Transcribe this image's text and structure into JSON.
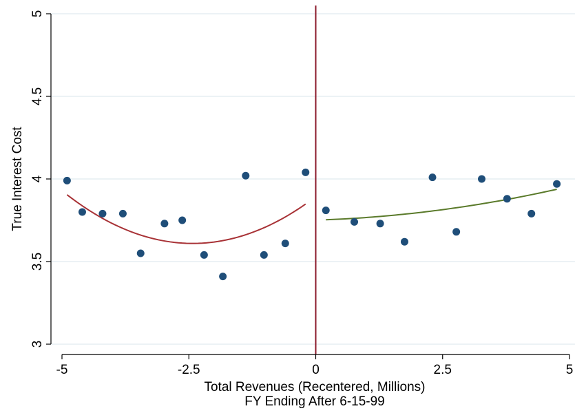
{
  "chart_data": {
    "type": "scatter",
    "xlabel": "Total Revenues (Recentered, Millions)",
    "xlabel2": "FY Ending After 6-15-99",
    "ylabel": "True Interest Cost",
    "xlim": [
      -5,
      5
    ],
    "ylim": [
      3,
      5
    ],
    "x_ticks": [
      -5,
      -2.5,
      0,
      2.5,
      5
    ],
    "x_tick_labels": [
      "-5",
      "-2.5",
      "0",
      "2.5",
      "5"
    ],
    "y_ticks": [
      3,
      3.5,
      4,
      4.5,
      5
    ],
    "y_tick_labels": [
      "3",
      "3.5",
      "4",
      "4.5",
      "5"
    ],
    "grid": true,
    "cutoff_x": 0,
    "points": [
      {
        "x": -4.9,
        "y": 3.99
      },
      {
        "x": -4.6,
        "y": 3.8
      },
      {
        "x": -4.2,
        "y": 3.79
      },
      {
        "x": -3.8,
        "y": 3.79
      },
      {
        "x": -3.45,
        "y": 3.55
      },
      {
        "x": -2.98,
        "y": 3.73
      },
      {
        "x": -2.63,
        "y": 3.75
      },
      {
        "x": -2.2,
        "y": 3.54
      },
      {
        "x": -1.83,
        "y": 3.41
      },
      {
        "x": -1.38,
        "y": 4.02
      },
      {
        "x": -1.02,
        "y": 3.54
      },
      {
        "x": -0.6,
        "y": 3.61
      },
      {
        "x": -0.2,
        "y": 4.04
      },
      {
        "x": 0.2,
        "y": 3.81
      },
      {
        "x": 0.76,
        "y": 3.74
      },
      {
        "x": 1.27,
        "y": 3.73
      },
      {
        "x": 1.75,
        "y": 3.62
      },
      {
        "x": 2.3,
        "y": 4.01
      },
      {
        "x": 2.77,
        "y": 3.68
      },
      {
        "x": 3.27,
        "y": 4.0
      },
      {
        "x": 3.77,
        "y": 3.88
      },
      {
        "x": 4.25,
        "y": 3.79
      },
      {
        "x": 4.75,
        "y": 3.97
      }
    ],
    "fits": [
      {
        "side": "left",
        "x_range": [
          -4.9,
          -0.2
        ],
        "coef": [
          0.04813,
          0.23343,
          3.8928
        ],
        "color": "#a83236"
      },
      {
        "side": "right",
        "x_range": [
          0.2,
          4.75
        ],
        "coef": [
          0.0062,
          0.0099,
          3.7507
        ],
        "color": "#5a7a2a"
      }
    ],
    "colors": {
      "points": "#1f4e79",
      "cutoff_line": "#8b1a2b",
      "grid": "#e6eef2",
      "axis": "#000000"
    }
  }
}
